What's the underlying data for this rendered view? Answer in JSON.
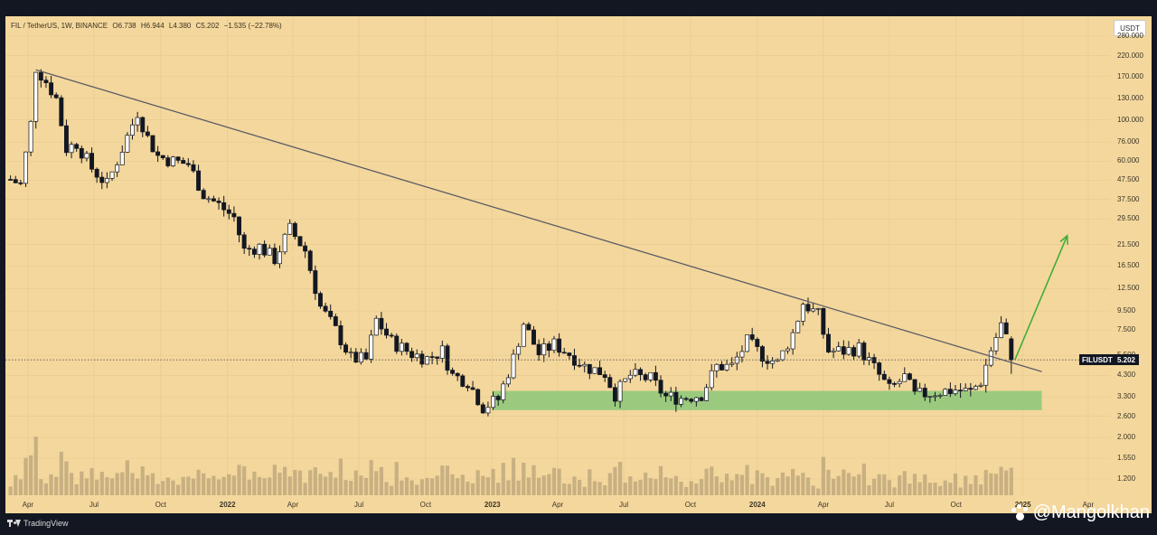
{
  "header": {
    "symbol": "FIL / TetherUS, 1W, BINANCE",
    "open": "O6.738",
    "high": "H6.944",
    "low": "L4.380",
    "close": "C5.202",
    "change": "−1.535 (−22.78%)",
    "currency_button": "USDT"
  },
  "price_axis": [
    "280.000",
    "220.000",
    "170.000",
    "130.000",
    "100.000",
    "76.000",
    "60.000",
    "47.500",
    "37.500",
    "29.500",
    "21.500",
    "16.500",
    "12.500",
    "9.500",
    "7.500",
    "5.500",
    "4.300",
    "3.300",
    "2.600",
    "2.000",
    "1.550",
    "1.200"
  ],
  "time_axis": [
    {
      "label": "Apr",
      "year": false
    },
    {
      "label": "Jul",
      "year": false
    },
    {
      "label": "Oct",
      "year": false
    },
    {
      "label": "2022",
      "year": true
    },
    {
      "label": "Apr",
      "year": false
    },
    {
      "label": "Jul",
      "year": false
    },
    {
      "label": "Oct",
      "year": false
    },
    {
      "label": "2023",
      "year": true
    },
    {
      "label": "Apr",
      "year": false
    },
    {
      "label": "Jul",
      "year": false
    },
    {
      "label": "Oct",
      "year": false
    },
    {
      "label": "2024",
      "year": true
    },
    {
      "label": "Apr",
      "year": false
    },
    {
      "label": "Jul",
      "year": false
    },
    {
      "label": "Oct",
      "year": false
    },
    {
      "label": "2025",
      "year": true
    },
    {
      "label": "Apr",
      "year": false
    }
  ],
  "last_price": {
    "symbol": "FILUSDT",
    "value": "5.202"
  },
  "footer": {
    "brand": "TradingView",
    "watermark": "@Mangolkhan"
  },
  "colors": {
    "background": "#f4d79c",
    "frame": "#131722",
    "candle_up": "#ffffff",
    "candle_down": "#131722",
    "trendline": "#5d5d66",
    "support_zone": "#8bc87a",
    "arrow": "#3fae3a",
    "volume": "#b9a37a"
  },
  "chart_data": {
    "type": "candlestick",
    "symbol": "FIL/USDT",
    "interval": "1W",
    "exchange": "BINANCE",
    "y_scale": "log",
    "ylim": [
      1.2,
      280
    ],
    "x_range": [
      "2021-03",
      "2025-05"
    ],
    "last_candle": {
      "open": 6.738,
      "high": 6.944,
      "low": 4.38,
      "close": 5.202,
      "change": -1.535,
      "change_pct": -22.78
    },
    "price_path": [
      [
        "2021-03-08",
        48
      ],
      [
        "2021-03-22",
        45
      ],
      [
        "2021-04-05",
        95
      ],
      [
        "2021-04-12",
        190
      ],
      [
        "2021-04-26",
        160
      ],
      [
        "2021-05-10",
        130
      ],
      [
        "2021-05-24",
        70
      ],
      [
        "2021-06-07",
        75
      ],
      [
        "2021-06-28",
        55
      ],
      [
        "2021-07-19",
        45
      ],
      [
        "2021-08-09",
        70
      ],
      [
        "2021-08-30",
        110
      ],
      [
        "2021-09-13",
        80
      ],
      [
        "2021-09-27",
        64
      ],
      [
        "2021-10-18",
        60
      ],
      [
        "2021-11-08",
        58
      ],
      [
        "2021-11-29",
        40
      ],
      [
        "2021-12-20",
        35
      ],
      [
        "2022-01-10",
        30
      ],
      [
        "2022-01-24",
        20
      ],
      [
        "2022-02-14",
        21
      ],
      [
        "2022-03-07",
        18
      ],
      [
        "2022-03-28",
        26
      ],
      [
        "2022-04-18",
        20
      ],
      [
        "2022-05-09",
        10
      ],
      [
        "2022-05-30",
        7.5
      ],
      [
        "2022-06-20",
        5.3
      ],
      [
        "2022-07-11",
        5.2
      ],
      [
        "2022-07-25",
        8.5
      ],
      [
        "2022-08-15",
        6.5
      ],
      [
        "2022-09-12",
        5.6
      ],
      [
        "2022-10-03",
        5.3
      ],
      [
        "2022-10-24",
        5.8
      ],
      [
        "2022-11-07",
        4.3
      ],
      [
        "2022-11-28",
        4.0
      ],
      [
        "2022-12-19",
        2.9
      ],
      [
        "2023-01-09",
        3.2
      ],
      [
        "2023-01-30",
        5.3
      ],
      [
        "2023-02-13",
        8.2
      ],
      [
        "2023-03-06",
        5.6
      ],
      [
        "2023-03-27",
        6.3
      ],
      [
        "2023-04-17",
        5.6
      ],
      [
        "2023-05-08",
        4.8
      ],
      [
        "2023-06-05",
        4.4
      ],
      [
        "2023-06-19",
        3.4
      ],
      [
        "2023-07-10",
        4.3
      ],
      [
        "2023-08-07",
        4.1
      ],
      [
        "2023-08-28",
        3.3
      ],
      [
        "2023-09-18",
        3.25
      ],
      [
        "2023-10-16",
        3.4
      ],
      [
        "2023-11-06",
        4.8
      ],
      [
        "2023-11-27",
        4.8
      ],
      [
        "2023-12-18",
        6.5
      ],
      [
        "2024-01-08",
        5.5
      ],
      [
        "2024-01-29",
        5.0
      ],
      [
        "2024-02-19",
        7.2
      ],
      [
        "2024-03-04",
        10.5
      ],
      [
        "2024-03-25",
        9.0
      ],
      [
        "2024-04-08",
        5.8
      ],
      [
        "2024-04-29",
        5.8
      ],
      [
        "2024-05-20",
        6.0
      ],
      [
        "2024-06-10",
        4.7
      ],
      [
        "2024-07-01",
        3.6
      ],
      [
        "2024-07-22",
        4.2
      ],
      [
        "2024-08-05",
        3.35
      ],
      [
        "2024-09-02",
        3.5
      ],
      [
        "2024-09-30",
        3.6
      ],
      [
        "2024-10-21",
        3.5
      ],
      [
        "2024-11-04",
        4.0
      ],
      [
        "2024-11-18",
        5.9
      ],
      [
        "2024-12-02",
        8.0
      ],
      [
        "2024-12-09",
        6.74
      ],
      [
        "2024-12-16",
        5.202
      ]
    ],
    "annotations": {
      "descending_trendline": {
        "from": [
          "2021-04-12",
          185
        ],
        "to": [
          "2025-01-27",
          4.5
        ]
      },
      "support_zone": {
        "x_from": "2023-01-01",
        "x_to": "2025-01-27",
        "y_from": 2.8,
        "y_to": 3.55
      },
      "projection_arrow": {
        "from": [
          "2024-12-16",
          5.2
        ],
        "to": [
          "2025-03-03",
          24
        ]
      }
    }
  }
}
